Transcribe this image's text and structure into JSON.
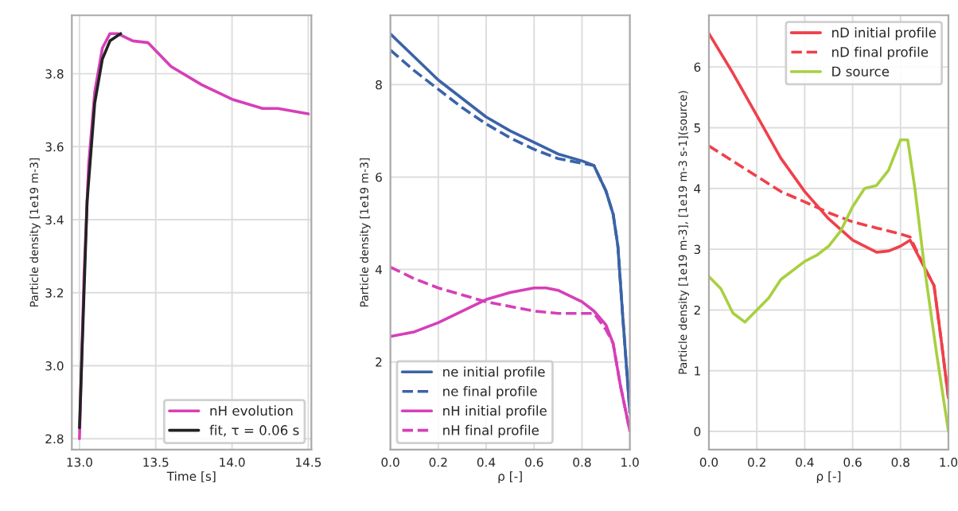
{
  "chart_data": [
    {
      "type": "line",
      "xlabel": "Time [s]",
      "ylabel": "Particle density [1e19 m-3]",
      "xlim": [
        12.95,
        14.52
      ],
      "ylim": [
        2.77,
        3.96
      ],
      "xticks": [
        {
          "value": 13.0,
          "label": "13.0"
        },
        {
          "value": 13.5,
          "label": "13.5"
        },
        {
          "value": 14.0,
          "label": "14.0"
        },
        {
          "value": 14.5,
          "label": "14.5"
        }
      ],
      "yticks": [
        {
          "value": 2.8,
          "label": "2.8"
        },
        {
          "value": 3.0,
          "label": "3.0"
        },
        {
          "value": 3.2,
          "label": "3.2"
        },
        {
          "value": 3.4,
          "label": "3.4"
        },
        {
          "value": 3.6,
          "label": "3.6"
        },
        {
          "value": 3.8,
          "label": "3.8"
        }
      ],
      "grid": true,
      "legend": "bottom right",
      "series": [
        {
          "name": "nH evolution",
          "color": "#d63fb8",
          "line_style": "solid",
          "x": [
            13.0,
            13.03,
            13.06,
            13.1,
            13.15,
            13.2,
            13.25,
            13.3,
            13.35,
            13.45,
            13.6,
            13.8,
            14.0,
            14.2,
            14.3,
            14.5
          ],
          "values": [
            2.8,
            3.25,
            3.55,
            3.75,
            3.87,
            3.91,
            3.91,
            3.9,
            3.89,
            3.885,
            3.82,
            3.77,
            3.73,
            3.705,
            3.705,
            3.69
          ]
        },
        {
          "name": "fit, τ = 0.06 s",
          "color": "#222222",
          "line_style": "solid",
          "x": [
            13.0,
            13.05,
            13.1,
            13.15,
            13.2,
            13.27
          ],
          "values": [
            2.83,
            3.45,
            3.72,
            3.84,
            3.89,
            3.91
          ]
        }
      ]
    },
    {
      "type": "line",
      "xlabel": "ρ [-]",
      "ylabel": "Particle density [1e19 m-3]",
      "xlim": [
        0.0,
        1.0
      ],
      "ylim": [
        0.1,
        9.5
      ],
      "xticks": [
        {
          "value": 0.0,
          "label": "0.0"
        },
        {
          "value": 0.2,
          "label": "0.2"
        },
        {
          "value": 0.4,
          "label": "0.4"
        },
        {
          "value": 0.6,
          "label": "0.6"
        },
        {
          "value": 0.8,
          "label": "0.8"
        },
        {
          "value": 1.0,
          "label": "1.0"
        }
      ],
      "yticks": [
        2,
        4,
        6,
        8
      ],
      "grid": true,
      "legend": "bottom left",
      "series": [
        {
          "name": "ne initial profile",
          "color": "#3b63a8",
          "line_style": "solid",
          "x": [
            0.0,
            0.1,
            0.2,
            0.3,
            0.4,
            0.5,
            0.6,
            0.7,
            0.8,
            0.85,
            0.9,
            0.93,
            0.95,
            0.97,
            1.0
          ],
          "values": [
            9.1,
            8.6,
            8.1,
            7.7,
            7.3,
            7.0,
            6.75,
            6.5,
            6.35,
            6.25,
            5.7,
            5.2,
            4.5,
            3.0,
            0.9
          ]
        },
        {
          "name": "ne final profile",
          "color": "#3b63a8",
          "line_style": "dashed",
          "x": [
            0.0,
            0.1,
            0.2,
            0.3,
            0.4,
            0.5,
            0.6,
            0.7,
            0.8,
            0.85,
            0.9,
            0.93,
            0.95,
            0.97,
            1.0
          ],
          "values": [
            8.75,
            8.3,
            7.9,
            7.5,
            7.15,
            6.85,
            6.6,
            6.4,
            6.3,
            6.25,
            5.7,
            5.2,
            4.5,
            3.0,
            0.9
          ]
        },
        {
          "name": "nH initial profile",
          "color": "#d63fb8",
          "line_style": "solid",
          "x": [
            0.0,
            0.1,
            0.2,
            0.3,
            0.4,
            0.5,
            0.6,
            0.65,
            0.7,
            0.8,
            0.85,
            0.9,
            0.93,
            0.96,
            1.0
          ],
          "values": [
            2.55,
            2.65,
            2.85,
            3.1,
            3.35,
            3.5,
            3.6,
            3.6,
            3.55,
            3.3,
            3.1,
            2.8,
            2.4,
            1.5,
            0.5
          ]
        },
        {
          "name": "nH final profile",
          "color": "#d63fb8",
          "line_style": "dashed",
          "x": [
            0.0,
            0.1,
            0.2,
            0.3,
            0.4,
            0.5,
            0.6,
            0.7,
            0.8,
            0.85,
            0.9,
            0.93,
            0.96,
            1.0
          ],
          "values": [
            4.05,
            3.8,
            3.6,
            3.45,
            3.3,
            3.2,
            3.1,
            3.05,
            3.05,
            3.05,
            2.7,
            2.4,
            1.5,
            0.5
          ]
        }
      ]
    },
    {
      "type": "line",
      "xlabel": "ρ [-]",
      "ylabel": "Particle density [1e19 m-3], [1e19 m-3 s-1](source)",
      "xlim": [
        0.0,
        1.0
      ],
      "ylim": [
        -0.3,
        6.85
      ],
      "xticks": [
        {
          "value": 0.0,
          "label": "0.0"
        },
        {
          "value": 0.2,
          "label": "0.2"
        },
        {
          "value": 0.4,
          "label": "0.4"
        },
        {
          "value": 0.6,
          "label": "0.6"
        },
        {
          "value": 0.8,
          "label": "0.8"
        },
        {
          "value": 1.0,
          "label": "1.0"
        }
      ],
      "yticks": [
        0,
        1,
        2,
        3,
        4,
        5,
        6
      ],
      "grid": true,
      "legend": "top right",
      "series": [
        {
          "name": "nD initial profile",
          "color": "#f0404a",
          "line_style": "solid",
          "x": [
            0.0,
            0.1,
            0.2,
            0.3,
            0.4,
            0.5,
            0.6,
            0.7,
            0.75,
            0.8,
            0.84,
            0.9,
            0.94,
            0.97,
            1.0
          ],
          "values": [
            6.55,
            5.9,
            5.2,
            4.5,
            3.95,
            3.5,
            3.15,
            2.95,
            2.97,
            3.05,
            3.15,
            2.7,
            2.4,
            1.5,
            0.55
          ]
        },
        {
          "name": "nD final profile",
          "color": "#f0404a",
          "line_style": "dashed",
          "x": [
            0.0,
            0.1,
            0.2,
            0.3,
            0.4,
            0.5,
            0.6,
            0.7,
            0.8,
            0.84,
            0.9,
            0.94,
            0.97,
            1.0
          ],
          "values": [
            4.7,
            4.45,
            4.2,
            3.95,
            3.78,
            3.6,
            3.45,
            3.35,
            3.25,
            3.2,
            2.7,
            2.4,
            1.5,
            0.55
          ]
        },
        {
          "name": "D source",
          "color": "#a8d040",
          "line_style": "solid",
          "x": [
            0.0,
            0.05,
            0.1,
            0.15,
            0.2,
            0.25,
            0.3,
            0.4,
            0.45,
            0.5,
            0.55,
            0.6,
            0.65,
            0.7,
            0.75,
            0.8,
            0.83,
            0.86,
            0.9,
            0.95,
            1.0
          ],
          "values": [
            2.55,
            2.35,
            1.95,
            1.8,
            2.0,
            2.2,
            2.5,
            2.8,
            2.9,
            3.05,
            3.3,
            3.7,
            4.0,
            4.05,
            4.3,
            4.8,
            4.8,
            4.0,
            2.7,
            1.3,
            0.0
          ]
        }
      ]
    }
  ]
}
